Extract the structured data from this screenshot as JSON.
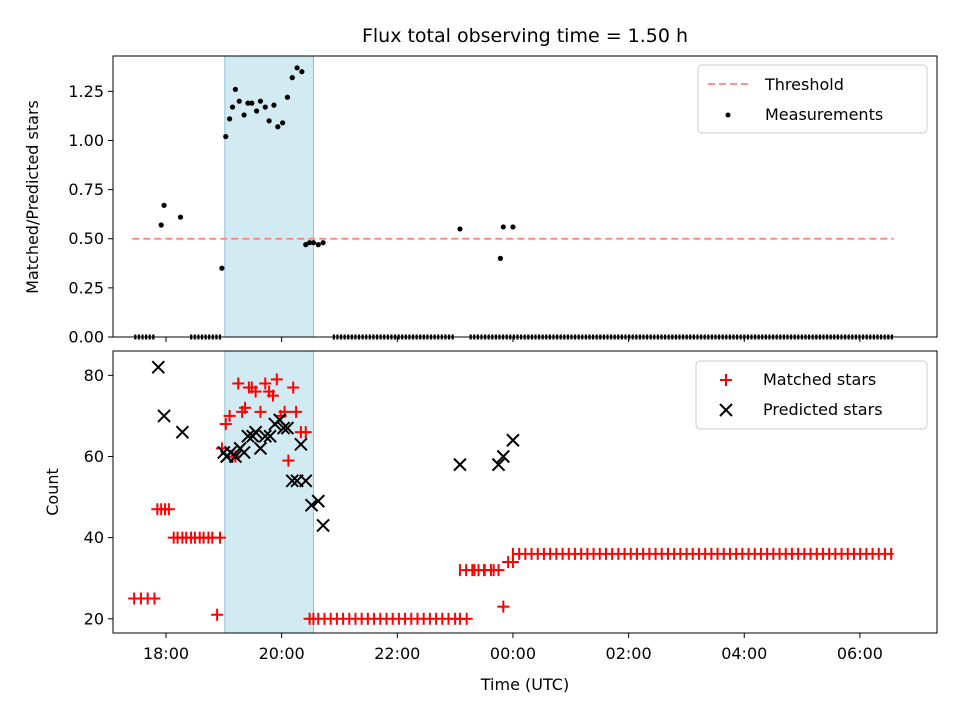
{
  "figure": {
    "title": "Flux total observing time = 1.50 h",
    "xlabel": "Time (UTC)",
    "x_tick_labels": [
      "18:00",
      "20:00",
      "22:00",
      "00:00",
      "02:00",
      "04:00",
      "06:00"
    ]
  },
  "colors": {
    "threshold": "#ff7f7f",
    "measurement": "#000000",
    "matched": "#ff0000",
    "predicted": "#000000",
    "shade": "#add8e6"
  },
  "chart_data": [
    {
      "type": "scatter",
      "ylabel": "Matched/Predicted stars",
      "xlim": [
        "17:05",
        "07:20"
      ],
      "ylim": [
        0,
        1.43
      ],
      "y_tick_labels": [
        "0.00",
        "0.25",
        "0.50",
        "0.75",
        "1.00",
        "1.25"
      ],
      "shaded_interval": [
        "19:01",
        "20:33"
      ],
      "legend": {
        "placement": "upper right",
        "entries": [
          "Threshold",
          "Measurements"
        ]
      },
      "threshold": {
        "name": "Threshold",
        "y": 0.5,
        "x_range": [
          "17:25",
          "06:35"
        ]
      },
      "series": [
        {
          "name": "Measurements",
          "x": [
            "17:55",
            "17:58",
            "18:15",
            "18:58",
            "19:02",
            "19:06",
            "19:09",
            "19:12",
            "19:16",
            "19:21",
            "19:25",
            "19:29",
            "19:34",
            "19:38",
            "19:43",
            "19:47",
            "19:52",
            "19:56",
            "20:01",
            "20:06",
            "20:11",
            "20:16",
            "20:21",
            "20:25",
            "20:29",
            "20:33",
            "20:38",
            "20:43",
            "23:05",
            "23:47",
            "23:50",
            "00:00"
          ],
          "y": [
            0.57,
            0.67,
            0.61,
            0.35,
            1.02,
            1.11,
            1.17,
            1.26,
            1.2,
            1.13,
            1.19,
            1.19,
            1.15,
            1.2,
            1.17,
            1.1,
            1.18,
            1.07,
            1.09,
            1.22,
            1.32,
            1.37,
            1.35,
            0.47,
            0.48,
            0.48,
            0.47,
            0.48,
            0.55,
            0.4,
            0.56,
            0.56
          ]
        }
      ],
      "zero_band": {
        "y": 0,
        "x_ranges": [
          [
            "17:27",
            "17:48"
          ],
          [
            "18:25",
            "18:58"
          ],
          [
            "20:53",
            "23:00"
          ],
          [
            "23:15",
            "06:35"
          ]
        ]
      }
    },
    {
      "type": "scatter",
      "ylabel": "Count",
      "xlim": [
        "17:05",
        "07:20"
      ],
      "ylim": [
        16.5,
        86
      ],
      "y_tick_labels": [
        "20",
        "40",
        "60",
        "80"
      ],
      "shaded_interval": [
        "19:01",
        "20:33"
      ],
      "legend": {
        "placement": "upper right",
        "entries": [
          "Matched stars",
          "Predicted stars"
        ]
      },
      "series": [
        {
          "name": "Matched stars",
          "x": [
            "17:27",
            "17:34",
            "17:41",
            "17:48",
            "17:51",
            "17:55",
            "17:59",
            "18:03",
            "18:08",
            "18:12",
            "18:17",
            "18:21",
            "18:26",
            "18:30",
            "18:35",
            "18:39",
            "18:44",
            "18:48",
            "18:53",
            "18:56",
            "18:58",
            "19:02",
            "19:06",
            "19:09",
            "19:12",
            "19:15",
            "19:19",
            "19:22",
            "19:26",
            "19:29",
            "19:33",
            "19:38",
            "19:43",
            "19:47",
            "19:51",
            "19:55",
            "19:59",
            "20:03",
            "20:07",
            "20:12",
            "20:15",
            "20:20",
            "20:25",
            "20:29",
            "20:33",
            "23:00",
            "23:05",
            "23:12",
            "23:20",
            "23:30",
            "23:40",
            "23:45",
            "23:50",
            "23:55",
            "00:00"
          ],
          "y": [
            25,
            25,
            25,
            25,
            47,
            47,
            47,
            47,
            40,
            40,
            40,
            40,
            40,
            40,
            40,
            40,
            40,
            40,
            21,
            40,
            62,
            68,
            70,
            60,
            60,
            78,
            71,
            72,
            77,
            77,
            76,
            71,
            78,
            76,
            75,
            79,
            70,
            71,
            59,
            77,
            71,
            66,
            66,
            20,
            20,
            20,
            20,
            20,
            32,
            32,
            32,
            32,
            23,
            34,
            34
          ],
          "baseline": [
            {
              "y": 20,
              "x_range": [
                "20:38",
                "22:58"
              ]
            },
            {
              "y": 32,
              "x_range": [
                "23:05",
                "23:40"
              ]
            },
            {
              "y": 36,
              "x_range": [
                "00:00",
                "06:35"
              ]
            }
          ]
        },
        {
          "name": "Predicted stars",
          "x": [
            "17:52",
            "17:58",
            "18:17",
            "19:00",
            "19:03",
            "19:07",
            "19:12",
            "19:17",
            "19:21",
            "19:25",
            "19:30",
            "19:33",
            "19:38",
            "19:43",
            "19:48",
            "19:53",
            "19:58",
            "20:02",
            "20:06",
            "20:11",
            "20:16",
            "20:20",
            "20:25",
            "20:31",
            "20:38",
            "20:43",
            "23:05",
            "23:45",
            "23:50",
            "00:00"
          ],
          "y": [
            82,
            70,
            66,
            61,
            60,
            61,
            60,
            62,
            61,
            65,
            65,
            66,
            62,
            65,
            65,
            68,
            69,
            67,
            67,
            54,
            54,
            63,
            54,
            48,
            49,
            43,
            58,
            58,
            60,
            64
          ]
        }
      ]
    }
  ]
}
